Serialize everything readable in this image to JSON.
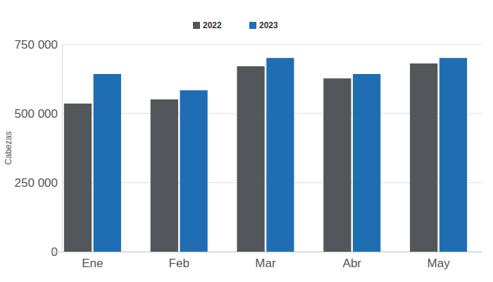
{
  "chart_data": {
    "type": "bar",
    "y_label": "Cabezas",
    "categories": [
      "Ene",
      "Feb",
      "Mar",
      "Abr",
      "May"
    ],
    "series": [
      {
        "name": "2022",
        "color": "#53565a",
        "values": [
          536000,
          551000,
          671000,
          627000,
          681000
        ]
      },
      {
        "name": "2023",
        "color": "#1f6eb3",
        "values": [
          643000,
          584000,
          701000,
          643000,
          701000
        ]
      }
    ],
    "ylim": [
      0,
      750000
    ],
    "yticks": [
      0,
      {
        "value": 250000,
        "label": "250 000"
      },
      {
        "value": 500000,
        "label": "500 000"
      },
      {
        "value": 750000,
        "label": "750 000"
      }
    ],
    "grid": true,
    "legend": "top"
  }
}
